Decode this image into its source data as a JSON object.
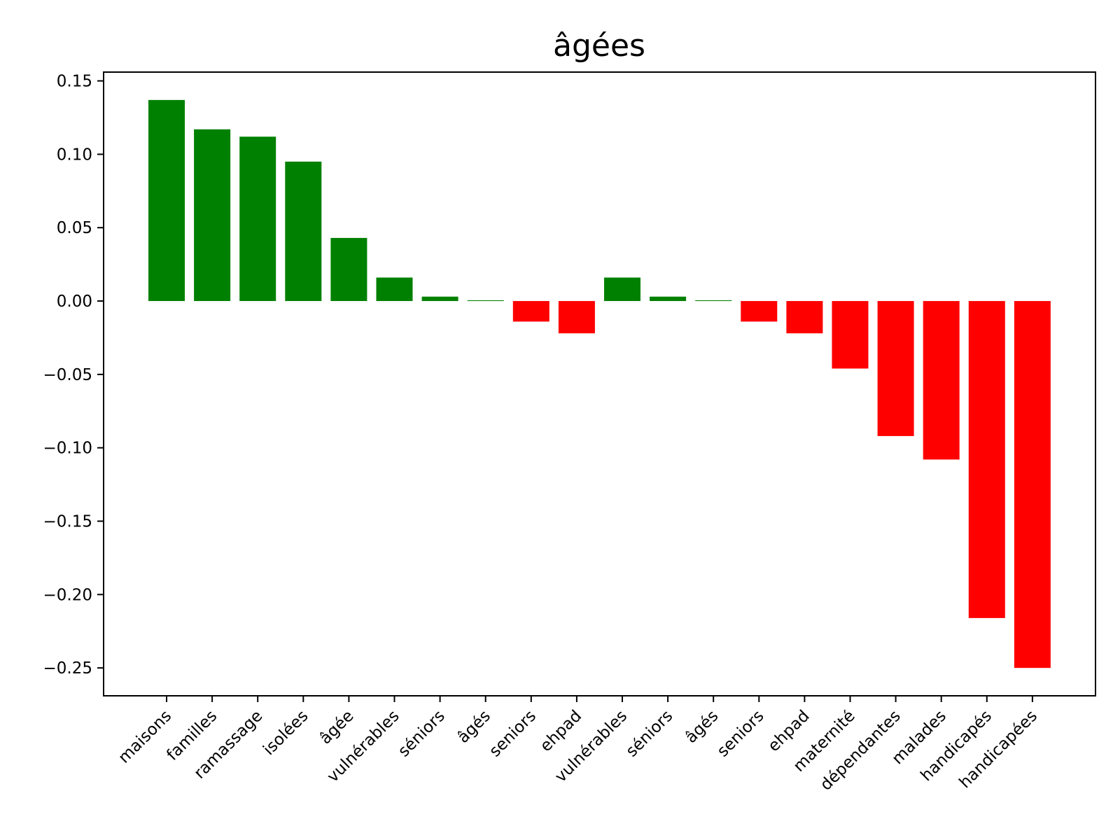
{
  "chart_data": {
    "type": "bar",
    "title": "âgées",
    "xlabel": "",
    "ylabel": "",
    "categories": [
      "maisons",
      "familles",
      "ramassage",
      "isolées",
      "âgée",
      "vulnérables",
      "séniors",
      "âgés",
      "seniors",
      "ehpad",
      "vulnérables",
      "séniors",
      "âgés",
      "seniors",
      "ehpad",
      "maternité",
      "dépendantes",
      "malades",
      "handicapés",
      "handicapées"
    ],
    "values": [
      0.137,
      0.117,
      0.112,
      0.095,
      0.043,
      0.016,
      0.003,
      0.0005,
      -0.014,
      -0.022,
      0.016,
      0.003,
      0.0005,
      -0.014,
      -0.022,
      -0.046,
      -0.092,
      -0.108,
      -0.216,
      -0.25
    ],
    "ylim": [
      -0.269,
      0.156
    ],
    "yticks": [
      0.15,
      0.1,
      0.05,
      0.0,
      -0.05,
      -0.1,
      -0.15,
      -0.2,
      -0.25
    ],
    "ytick_labels": [
      "0.15",
      "0.10",
      "0.05",
      "0.00",
      "−0.05",
      "−0.10",
      "−0.15",
      "−0.20",
      "−0.25"
    ],
    "colors": {
      "positive": "#008000",
      "negative": "#ff0000"
    },
    "grid": false,
    "legend": "none"
  }
}
